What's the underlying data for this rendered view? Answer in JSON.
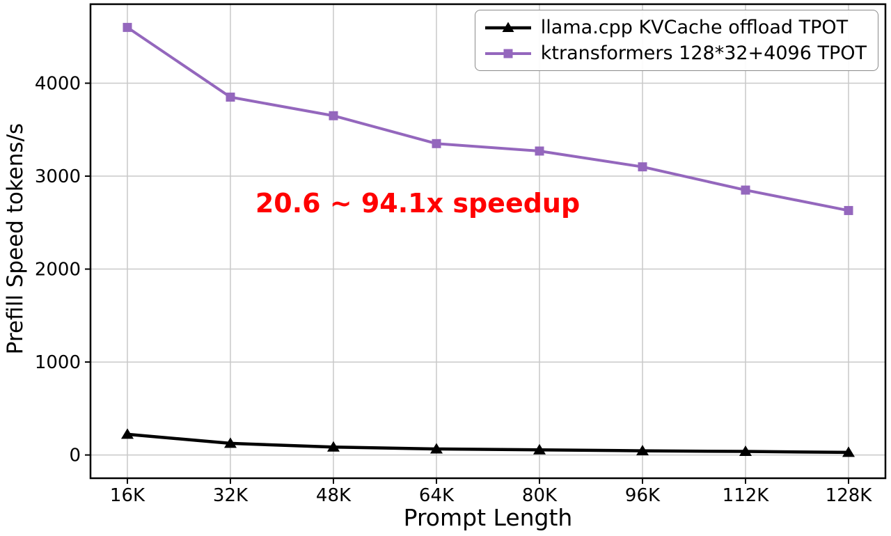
{
  "chart_data": {
    "type": "line",
    "categories": [
      "16K",
      "32K",
      "48K",
      "64K",
      "80K",
      "96K",
      "112K",
      "128K"
    ],
    "series": [
      {
        "name": "llama.cpp KVCache offload TPOT",
        "color": "#000000",
        "marker": "triangle-up",
        "line_width": 4.5,
        "values": [
          223,
          125,
          85,
          65,
          55,
          45,
          38,
          28
        ]
      },
      {
        "name": "ktransformers 128*32+4096 TPOT",
        "color": "#9467bd",
        "marker": "square",
        "line_width": 4,
        "values": [
          4600,
          3850,
          3650,
          3350,
          3270,
          3100,
          2850,
          2630
        ]
      }
    ],
    "title": "",
    "xlabel": "Prompt Length",
    "ylabel": "Prefill Speed tokens/s",
    "yticks": [
      0,
      1000,
      2000,
      3000,
      4000
    ],
    "ylim": [
      -250,
      4850
    ],
    "grid": true,
    "grid_color": "#c9c9c9",
    "legend_position": "upper right",
    "annotation": {
      "text": "20.6 ~ 94.1x speedup",
      "color": "#ff0000"
    }
  }
}
